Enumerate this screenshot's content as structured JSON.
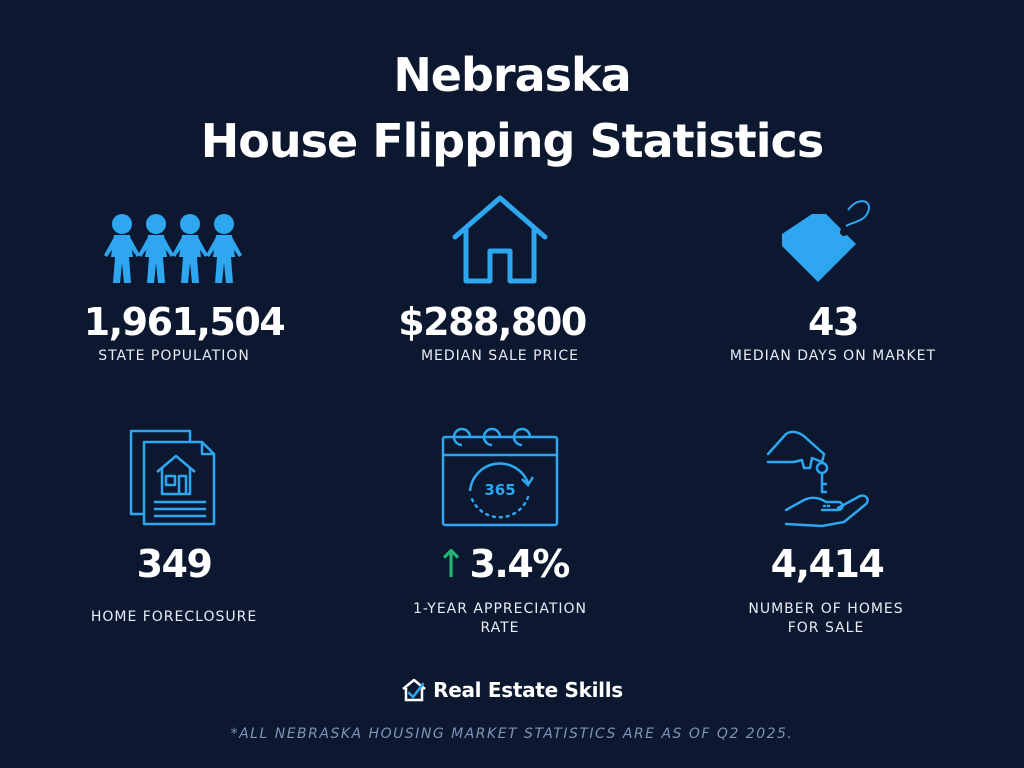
{
  "title": {
    "line1": "Nebraska",
    "line2": "House Flipping Statistics"
  },
  "stats": [
    {
      "icon": "people-icon",
      "value": "1,961,504",
      "label": "STATE POPULATION"
    },
    {
      "icon": "house-icon",
      "value": "$288,800",
      "label": "MEDIAN SALE PRICE"
    },
    {
      "icon": "price-tag-icon",
      "value": "43",
      "label": "MEDIAN DAYS ON MARKET"
    },
    {
      "icon": "foreclosure-document-icon",
      "value": "349",
      "label": "HOME FORECLOSURE"
    },
    {
      "icon": "calendar-365-icon",
      "value": "3.4%",
      "arrow": "↑",
      "label_line1": "1-YEAR APPRECIATION",
      "label_line2": "RATE"
    },
    {
      "icon": "hand-keys-icon",
      "value": "4,414",
      "label_line1": "NUMBER OF HOMES",
      "label_line2": "FOR SALE"
    }
  ],
  "calendar_text": "365",
  "brand": {
    "name": "Real Estate Skills",
    "icon": "house-check-logo-icon"
  },
  "footnote": "*ALL NEBRASKA  HOUSING MARKET STATISTICS ARE AS OF Q2 2025.",
  "colors": {
    "background": "#0c1730",
    "icon_blue": "#2ea6f0",
    "arrow_green": "#22b573",
    "footnote": "#7f93b5"
  }
}
